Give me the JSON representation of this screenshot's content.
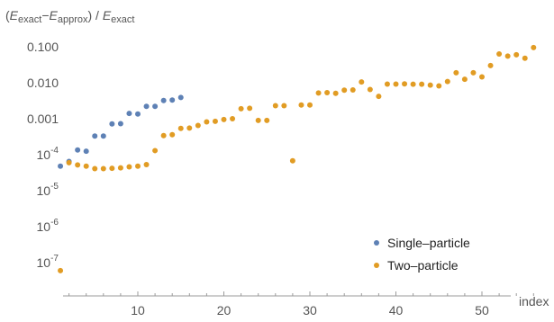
{
  "chart_data": {
    "type": "scatter",
    "title": "",
    "ylabel": {
      "prefix": "(",
      "e1_main": "E",
      "e1_sub": "exact",
      "minus": "−",
      "e2_main": "E",
      "e2_sub": "approx",
      "mid": ") / ",
      "e3_main": "E",
      "e3_sub": "exact"
    },
    "xlabel": "index",
    "y_scale": "log",
    "xlim": [
      0,
      57
    ],
    "ylim": [
      4e-08,
      0.2
    ],
    "grid": false,
    "legend_position": "bottom-right",
    "x_ticks": [
      {
        "value": 10,
        "label": "10"
      },
      {
        "value": 20,
        "label": "20"
      },
      {
        "value": 30,
        "label": "30"
      },
      {
        "value": 40,
        "label": "40"
      },
      {
        "value": 50,
        "label": "50"
      }
    ],
    "y_ticks": [
      {
        "value": 0.1,
        "type": "plain",
        "label": "0.100"
      },
      {
        "value": 0.01,
        "type": "plain",
        "label": "0.010"
      },
      {
        "value": 0.001,
        "type": "plain",
        "label": "0.001"
      },
      {
        "value": 0.0001,
        "type": "pow",
        "base": "10",
        "exp": "-4"
      },
      {
        "value": 1e-05,
        "type": "pow",
        "base": "10",
        "exp": "-5"
      },
      {
        "value": 1e-06,
        "type": "pow",
        "base": "10",
        "exp": "-6"
      },
      {
        "value": 1e-07,
        "type": "pow",
        "base": "10",
        "exp": "-7"
      }
    ],
    "series": [
      {
        "name": "Single–particle",
        "color": "#5e81b5",
        "points": [
          [
            1,
            4.8e-05
          ],
          [
            2,
            6.5e-05
          ],
          [
            3,
            0.000135
          ],
          [
            4,
            0.000125
          ],
          [
            5,
            0.00033
          ],
          [
            6,
            0.00033
          ],
          [
            7,
            0.00072
          ],
          [
            8,
            0.00073
          ],
          [
            9,
            0.0014
          ],
          [
            10,
            0.00135
          ],
          [
            11,
            0.0022
          ],
          [
            12,
            0.0022
          ],
          [
            13,
            0.0032
          ],
          [
            14,
            0.0033
          ],
          [
            15,
            0.0039
          ]
        ]
      },
      {
        "name": "Two–particle",
        "color": "#e19c24",
        "points": [
          [
            1,
            6e-08
          ],
          [
            2,
            6e-05
          ],
          [
            3,
            5.2e-05
          ],
          [
            4,
            4.8e-05
          ],
          [
            5,
            4.1e-05
          ],
          [
            6,
            4.1e-05
          ],
          [
            7,
            4.2e-05
          ],
          [
            8,
            4.3e-05
          ],
          [
            9,
            4.6e-05
          ],
          [
            10,
            4.8e-05
          ],
          [
            11,
            5.3e-05
          ],
          [
            12,
            0.00013
          ],
          [
            13,
            0.00034
          ],
          [
            14,
            0.00036
          ],
          [
            15,
            0.00054
          ],
          [
            16,
            0.00055
          ],
          [
            17,
            0.00065
          ],
          [
            18,
            0.00082
          ],
          [
            19,
            0.00085
          ],
          [
            20,
            0.00095
          ],
          [
            21,
            0.001
          ],
          [
            22,
            0.0019
          ],
          [
            23,
            0.00195
          ],
          [
            24,
            0.0009
          ],
          [
            25,
            0.0009
          ],
          [
            26,
            0.0023
          ],
          [
            27,
            0.0023
          ],
          [
            28,
            6.8e-05
          ],
          [
            29,
            0.0024
          ],
          [
            30,
            0.0024
          ],
          [
            31,
            0.0052
          ],
          [
            32,
            0.0053
          ],
          [
            33,
            0.0051
          ],
          [
            34,
            0.0062
          ],
          [
            35,
            0.0063
          ],
          [
            36,
            0.0105
          ],
          [
            37,
            0.0065
          ],
          [
            38,
            0.0042
          ],
          [
            39,
            0.0092
          ],
          [
            40,
            0.0092
          ],
          [
            41,
            0.0093
          ],
          [
            42,
            0.0091
          ],
          [
            43,
            0.0091
          ],
          [
            44,
            0.0086
          ],
          [
            45,
            0.0082
          ],
          [
            46,
            0.0108
          ],
          [
            47,
            0.019
          ],
          [
            48,
            0.0125
          ],
          [
            49,
            0.019
          ],
          [
            50,
            0.0145
          ],
          [
            51,
            0.03
          ],
          [
            52,
            0.063
          ],
          [
            53,
            0.055
          ],
          [
            54,
            0.06
          ],
          [
            55,
            0.048
          ],
          [
            56,
            0.095
          ]
        ]
      }
    ]
  }
}
